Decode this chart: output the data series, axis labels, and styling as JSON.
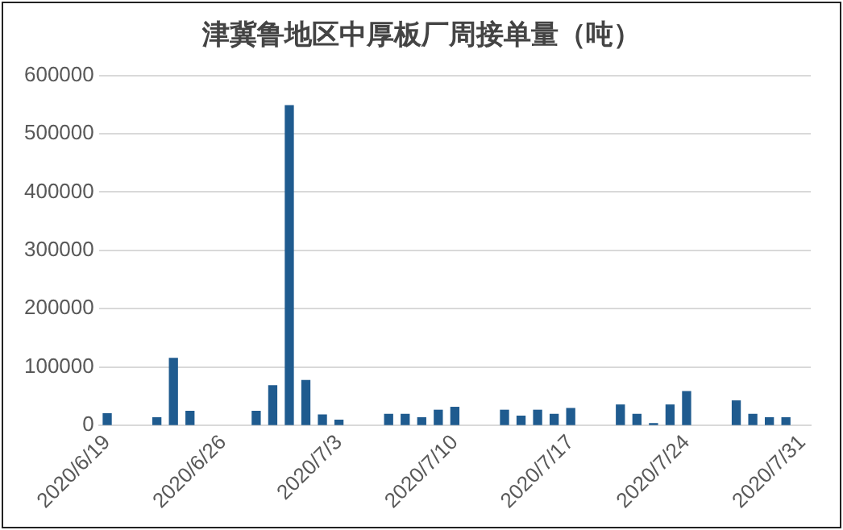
{
  "chart_data": {
    "type": "bar",
    "title": "津冀鲁地区中厚板厂周接单量（吨）",
    "x": [
      "2020-06-19",
      "2020-06-22",
      "2020-06-23",
      "2020-06-24",
      "2020-06-28",
      "2020-06-29",
      "2020-06-30",
      "2020-07-01",
      "2020-07-02",
      "2020-07-03",
      "2020-07-06",
      "2020-07-07",
      "2020-07-08",
      "2020-07-09",
      "2020-07-10",
      "2020-07-13",
      "2020-07-14",
      "2020-07-15",
      "2020-07-16",
      "2020-07-17",
      "2020-07-20",
      "2020-07-21",
      "2020-07-22",
      "2020-07-23",
      "2020-07-24",
      "2020-07-27",
      "2020-07-28",
      "2020-07-29",
      "2020-07-30"
    ],
    "values": [
      20000,
      13000,
      115000,
      24000,
      24000,
      68000,
      548000,
      77000,
      18000,
      9000,
      19000,
      19000,
      13000,
      26000,
      31000,
      26000,
      16000,
      26000,
      19000,
      29000,
      35000,
      19000,
      3000,
      35000,
      58000,
      42000,
      19000,
      13000,
      13000
    ],
    "color": "#1f5b8f",
    "xlim": [
      "2020-06-18T12:00",
      "2020-07-31T12:00"
    ],
    "xticks": [
      {
        "value": "2020-06-19",
        "label": "2020/6/19"
      },
      {
        "value": "2020-06-26",
        "label": "2020/6/26"
      },
      {
        "value": "2020-07-03",
        "label": "2020/7/3"
      },
      {
        "value": "2020-07-10",
        "label": "2020/7/10"
      },
      {
        "value": "2020-07-17",
        "label": "2020/7/17"
      },
      {
        "value": "2020-07-24",
        "label": "2020/7/24"
      },
      {
        "value": "2020-07-31",
        "label": "2020/7/31"
      }
    ],
    "ylim": [
      0,
      600000
    ],
    "yticks": [
      0,
      100000,
      200000,
      300000,
      400000,
      500000,
      600000
    ],
    "grid": "y",
    "legend": false
  }
}
